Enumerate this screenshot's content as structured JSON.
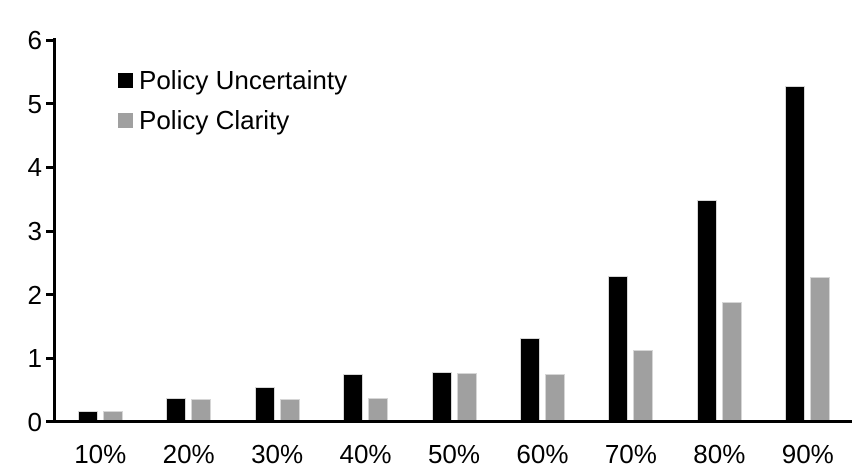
{
  "chart_data": {
    "type": "bar",
    "title": "",
    "xlabel": "",
    "ylabel": "",
    "categories": [
      "10%",
      "20%",
      "30%",
      "40%",
      "50%",
      "60%",
      "70%",
      "80%",
      "90%"
    ],
    "series": [
      {
        "name": "Policy Uncertainty",
        "color": "#000000",
        "values": [
          0.18,
          0.37,
          0.55,
          0.76,
          0.78,
          1.32,
          2.3,
          3.48,
          5.28
        ]
      },
      {
        "name": "Policy Clarity",
        "color": "#a0a0a0",
        "values": [
          0.18,
          0.36,
          0.36,
          0.37,
          0.77,
          0.75,
          1.13,
          1.88,
          2.28
        ]
      }
    ],
    "ylim": [
      0,
      6
    ],
    "yticks": [
      0,
      1,
      2,
      3,
      4,
      5,
      6
    ],
    "ytick_labels": [
      "0",
      "1",
      "2",
      "3",
      "4",
      "5",
      "6"
    ],
    "grid": false,
    "legend_position": "top-left",
    "axis_color": "#000000",
    "background": "#ffffff"
  }
}
